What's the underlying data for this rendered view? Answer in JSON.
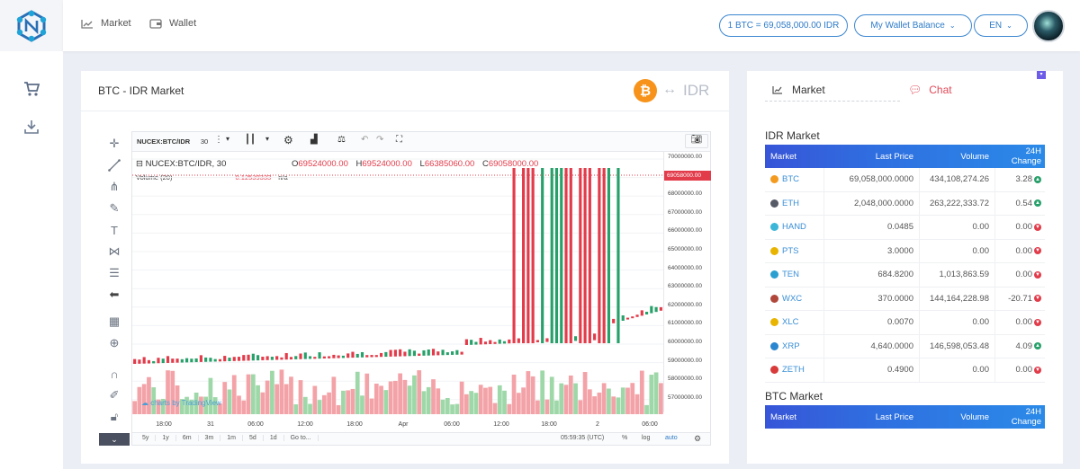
{
  "nav": {
    "market": "Market",
    "wallet": "Wallet"
  },
  "header": {
    "rate_pill": "1 BTC = 69,058,000.00 IDR",
    "wallet_pill": "My Wallet Balance",
    "lang_pill": "EN"
  },
  "main": {
    "title": "BTC - IDR Market",
    "quote": "IDR"
  },
  "tv": {
    "symbol_input": "NUCEX:BTC/IDR",
    "interval": "30",
    "legend_title": "NUCEX:BTC/IDR, 30",
    "o_label": "O",
    "o": "69524000.00",
    "h_label": "H",
    "h": "69524000.00",
    "l_label": "L",
    "l": "66385060.00",
    "c_label": "C",
    "c": "69058000.00",
    "volume_label": "Volume (20)",
    "volume_value": "0.12539333",
    "volume_na": "n/a",
    "watermark": "charts by TradingView",
    "current_price": "69058000.00",
    "price_ticks": [
      "70000000.00",
      "69000000.00",
      "68000000.00",
      "67000000.00",
      "66000000.00",
      "65000000.00",
      "64000000.00",
      "63000000.00",
      "62000000.00",
      "61000000.00",
      "60000000.00",
      "59000000.00",
      "58000000.00",
      "57000000.00"
    ],
    "time_ticks": [
      "18:00",
      "31",
      "06:00",
      "12:00",
      "18:00",
      "Apr",
      "06:00",
      "12:00",
      "18:00",
      "2",
      "06:00"
    ],
    "ranges": [
      "5y",
      "1y",
      "6m",
      "3m",
      "1m",
      "5d",
      "1d",
      "Go to..."
    ],
    "clock": "05:59:35 (UTC)",
    "pct": "%",
    "log": "log",
    "auto": "auto"
  },
  "side": {
    "tab_market": "Market",
    "tab_chat": "Chat",
    "idr_title": "IDR Market",
    "btc_title": "BTC Market",
    "columns": [
      "Market",
      "Last Price",
      "Volume",
      "24H Change"
    ],
    "rows": [
      {
        "sym": "BTC",
        "price": "69,058,000.0000",
        "vol": "434,108,274.26",
        "chg": "3.28",
        "dir": "up",
        "color": "#f39a1f"
      },
      {
        "sym": "ETH",
        "price": "2,048,000.0000",
        "vol": "263,222,333.72",
        "chg": "0.54",
        "dir": "up",
        "color": "#555a66"
      },
      {
        "sym": "HAND",
        "price": "0.0485",
        "vol": "0.00",
        "chg": "0.00",
        "dir": "down",
        "color": "#3bb6d8"
      },
      {
        "sym": "PTS",
        "price": "3.0000",
        "vol": "0.00",
        "chg": "0.00",
        "dir": "down",
        "color": "#e8b400"
      },
      {
        "sym": "TEN",
        "price": "684.8200",
        "vol": "1,013,863.59",
        "chg": "0.00",
        "dir": "down",
        "color": "#2a9fd0"
      },
      {
        "sym": "WXC",
        "price": "370.0000",
        "vol": "144,164,228.98",
        "chg": "-20.71",
        "dir": "down",
        "color": "#b0473a"
      },
      {
        "sym": "XLC",
        "price": "0.0070",
        "vol": "0.00",
        "chg": "0.00",
        "dir": "down",
        "color": "#e8b400"
      },
      {
        "sym": "XRP",
        "price": "4,640.0000",
        "vol": "146,598,053.48",
        "chg": "4.09",
        "dir": "up",
        "color": "#2a86d0"
      },
      {
        "sym": "ZETH",
        "price": "0.4900",
        "vol": "0.00",
        "chg": "0.00",
        "dir": "down",
        "color": "#d83a3a"
      }
    ]
  },
  "colors": {
    "up": "#27a06a",
    "down": "#e23b4a",
    "accent": "#2e7bc8",
    "chat": "#e04b5a"
  }
}
